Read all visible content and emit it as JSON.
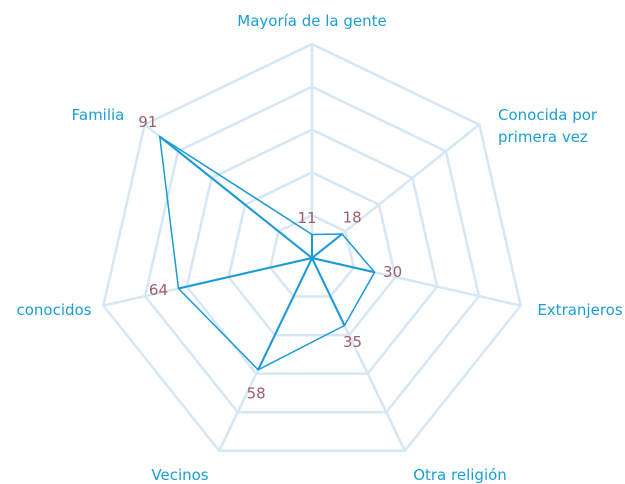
{
  "chart_data": {
    "type": "radar",
    "categories": [
      "Mayoría de la gente",
      "Conocida por primera vez",
      "Extranjeros",
      "Otra religión",
      "Vecinos",
      "conocidos",
      "Familia"
    ],
    "values": [
      11,
      18,
      30,
      35,
      58,
      64,
      91
    ],
    "color": "#1a9ad6",
    "grid_color": "#d5e7f5",
    "rlim": [
      0,
      100
    ],
    "rticks": [
      20,
      40,
      60,
      80,
      100
    ],
    "grid": true
  }
}
